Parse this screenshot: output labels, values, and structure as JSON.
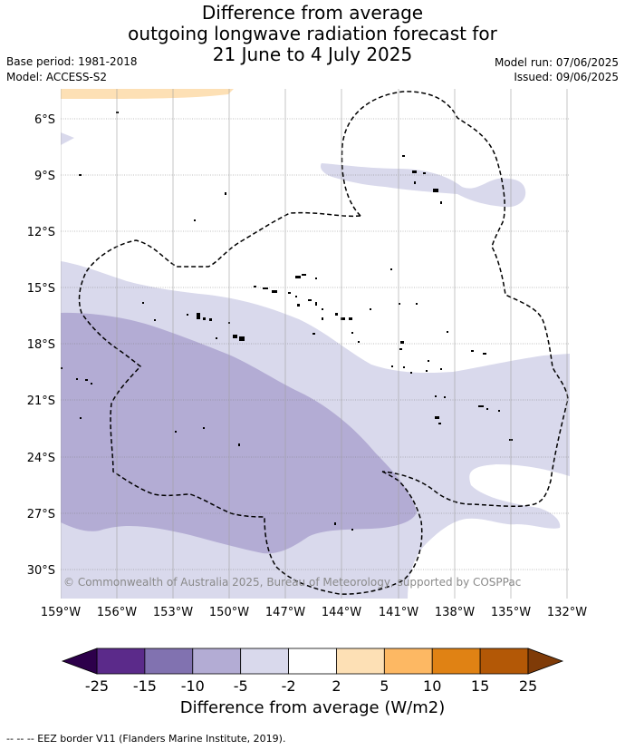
{
  "title": {
    "line1": "Difference from average",
    "line2": "outgoing longwave radiation forecast for",
    "line3": "21 June to 4 July 2025"
  },
  "meta": {
    "base_period": "Base period: 1981-2018",
    "model": "Model: ACCESS-S2",
    "model_run": "Model run: 07/06/2025",
    "issued": "Issued: 09/06/2025"
  },
  "map": {
    "lat_labels": [
      "6°S",
      "9°S",
      "12°S",
      "15°S",
      "18°S",
      "21°S",
      "24°S",
      "27°S",
      "30°S"
    ],
    "lon_labels": [
      "159°W",
      "156°W",
      "153°W",
      "150°W",
      "147°W",
      "144°W",
      "141°W",
      "138°W",
      "135°W",
      "132°W"
    ],
    "copyright": "© Commonwealth of Australia 2025, Bureau of Meteorology, supported by COSPPac"
  },
  "colorbar": {
    "title": "Difference from average (W/m2)",
    "tick_labels": [
      "-25",
      "-15",
      "-10",
      "-5",
      "-2",
      "2",
      "5",
      "10",
      "15",
      "25"
    ],
    "colors": [
      "#5b2a8a",
      "#8172b0",
      "#b3acd4",
      "#d9d9ec",
      "#ffffff",
      "#fde0b5",
      "#fdb863",
      "#e08214",
      "#b35806"
    ],
    "end_low": "#2d004b",
    "end_high": "#7f3b08"
  },
  "footnote": "-- -- -- EEZ border V11 (Flanders Marine Institute, 2019)."
}
